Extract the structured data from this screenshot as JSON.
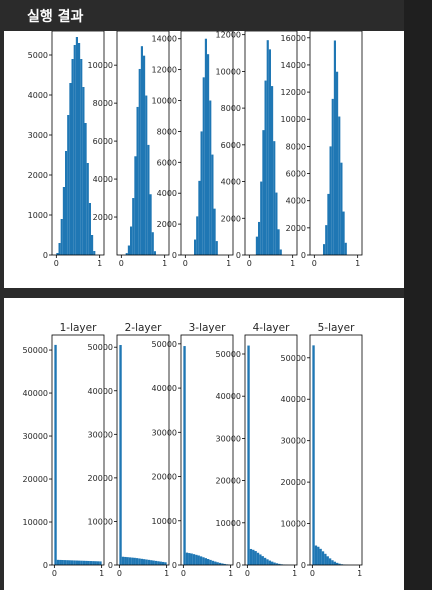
{
  "header": {
    "title": "실행 결과"
  },
  "colors": {
    "bar": "#1f77b4",
    "frame": "#000000",
    "background": "#ffffff"
  },
  "chart_data": [
    {
      "type": "bar",
      "panels": [
        {
          "name": "",
          "x": [
            0,
            0.05,
            0.1,
            0.15,
            0.2,
            0.25,
            0.3,
            0.35,
            0.4,
            0.45,
            0.5,
            0.55,
            0.6,
            0.65,
            0.7,
            0.75,
            0.8,
            0.85
          ],
          "values": [
            50,
            300,
            900,
            1700,
            2600,
            3500,
            4300,
            4900,
            5250,
            5450,
            5300,
            4900,
            4200,
            3300,
            2300,
            1300,
            500,
            100
          ],
          "xticks": [
            "0",
            "1"
          ],
          "yticks": [
            0,
            1000,
            2000,
            3000,
            4000,
            5000
          ],
          "ylim": [
            0,
            5600
          ],
          "xlim": [
            -0.1,
            1.1
          ]
        },
        {
          "name": "",
          "x": [
            0.1,
            0.15,
            0.2,
            0.25,
            0.3,
            0.35,
            0.4,
            0.45,
            0.5,
            0.55,
            0.6,
            0.65,
            0.7,
            0.75
          ],
          "values": [
            100,
            500,
            1500,
            3000,
            5200,
            7800,
            9800,
            11000,
            10500,
            8400,
            5800,
            3200,
            1200,
            200
          ],
          "xticks": [
            "0",
            "1"
          ],
          "yticks": [
            2000,
            4000,
            6000,
            8000,
            10000
          ],
          "ylim": [
            0,
            11800
          ],
          "xlim": [
            -0.1,
            1.1
          ]
        },
        {
          "name": "",
          "x": [
            0.2,
            0.25,
            0.3,
            0.35,
            0.4,
            0.45,
            0.5,
            0.55,
            0.6,
            0.65,
            0.7
          ],
          "values": [
            1000,
            2500,
            4800,
            8000,
            11500,
            14000,
            13000,
            10000,
            6500,
            3000,
            900
          ],
          "xticks": [
            "0",
            "1"
          ],
          "yticks": [
            0,
            2000,
            4000,
            6000,
            8000,
            10000,
            12000,
            14000
          ],
          "ylim": [
            0,
            14500
          ],
          "xlim": [
            -0.1,
            1.1
          ]
        },
        {
          "name": "",
          "x": [
            0.15,
            0.2,
            0.25,
            0.3,
            0.35,
            0.4,
            0.45,
            0.5,
            0.55,
            0.6,
            0.65,
            0.7
          ],
          "values": [
            1000,
            1800,
            4000,
            6800,
            9500,
            11700,
            11200,
            9200,
            6200,
            3400,
            1400,
            300
          ],
          "xticks": [
            "0",
            "1"
          ],
          "yticks": [
            0,
            2000,
            4000,
            6000,
            8000,
            10000,
            12000
          ],
          "ylim": [
            0,
            12200
          ],
          "xlim": [
            -0.1,
            1.1
          ]
        },
        {
          "name": "",
          "x": [
            0.2,
            0.25,
            0.3,
            0.35,
            0.4,
            0.45,
            0.5,
            0.55,
            0.6,
            0.65,
            0.7
          ],
          "values": [
            800,
            2200,
            4500,
            8000,
            11500,
            15800,
            13500,
            10200,
            6800,
            3200,
            900
          ],
          "xticks": [
            "0",
            "1"
          ],
          "yticks": [
            0,
            2000,
            4000,
            6000,
            8000,
            10000,
            12000,
            14000,
            16000
          ],
          "ylim": [
            0,
            16500
          ],
          "xlim": [
            -0.1,
            1.1
          ]
        }
      ]
    },
    {
      "type": "bar",
      "panels": [
        {
          "name": "1-layer",
          "x": [
            0,
            0.05,
            0.1,
            0.15,
            0.2,
            0.25,
            0.3,
            0.35,
            0.4,
            0.45,
            0.5,
            0.55,
            0.6,
            0.65,
            0.7,
            0.75,
            0.8,
            0.85,
            0.9,
            0.95
          ],
          "values": [
            51200,
            1200,
            1180,
            1160,
            1140,
            1120,
            1100,
            1080,
            1060,
            1040,
            1020,
            1000,
            980,
            960,
            940,
            920,
            900,
            880,
            860,
            840
          ],
          "xticks": [
            "0",
            "1"
          ],
          "yticks": [
            0,
            10000,
            20000,
            30000,
            40000,
            50000
          ],
          "ylim": [
            0,
            53500
          ],
          "xlim": [
            -0.05,
            1.05
          ]
        },
        {
          "name": "2-layer",
          "x": [
            0,
            0.05,
            0.1,
            0.15,
            0.2,
            0.25,
            0.3,
            0.35,
            0.4,
            0.45,
            0.5,
            0.55,
            0.6,
            0.65,
            0.7,
            0.75,
            0.8,
            0.85,
            0.9,
            0.95
          ],
          "values": [
            50500,
            1900,
            1850,
            1800,
            1750,
            1700,
            1650,
            1580,
            1500,
            1420,
            1340,
            1260,
            1180,
            1100,
            1020,
            940,
            860,
            780,
            700,
            620
          ],
          "xticks": [
            "0",
            "1"
          ],
          "yticks": [
            0,
            10000,
            20000,
            30000,
            40000,
            50000
          ],
          "ylim": [
            0,
            52800
          ],
          "xlim": [
            -0.05,
            1.05
          ]
        },
        {
          "name": "3-layer",
          "x": [
            0,
            0.05,
            0.1,
            0.15,
            0.2,
            0.25,
            0.3,
            0.35,
            0.4,
            0.45,
            0.5,
            0.55,
            0.6,
            0.65,
            0.7,
            0.75,
            0.8,
            0.85,
            0.9,
            0.95
          ],
          "values": [
            49500,
            2800,
            2700,
            2600,
            2450,
            2300,
            2150,
            1950,
            1750,
            1550,
            1350,
            1150,
            950,
            780,
            620,
            480,
            350,
            240,
            150,
            80
          ],
          "xticks": [
            "0",
            "1"
          ],
          "yticks": [
            0,
            10000,
            20000,
            30000,
            40000,
            50000
          ],
          "ylim": [
            0,
            52000
          ],
          "xlim": [
            -0.05,
            1.05
          ]
        },
        {
          "name": "4-layer",
          "x": [
            0,
            0.05,
            0.1,
            0.15,
            0.2,
            0.25,
            0.3,
            0.35,
            0.4,
            0.45,
            0.5,
            0.55,
            0.6,
            0.65,
            0.7,
            0.75,
            0.8,
            0.85,
            0.9,
            0.95
          ],
          "values": [
            52000,
            3800,
            3600,
            3300,
            2900,
            2500,
            2100,
            1700,
            1350,
            1050,
            800,
            580,
            400,
            270,
            170,
            100,
            60,
            30,
            15,
            5
          ],
          "xticks": [
            "0",
            "1"
          ],
          "yticks": [
            0,
            10000,
            20000,
            30000,
            40000,
            50000
          ],
          "ylim": [
            0,
            54500
          ],
          "xlim": [
            -0.05,
            1.05
          ]
        },
        {
          "name": "5-layer",
          "x": [
            0,
            0.05,
            0.1,
            0.15,
            0.2,
            0.25,
            0.3,
            0.35,
            0.4,
            0.45,
            0.5,
            0.55,
            0.6,
            0.65,
            0.7,
            0.75,
            0.8,
            0.85,
            0.9,
            0.95
          ],
          "values": [
            53000,
            4700,
            4400,
            3900,
            3300,
            2700,
            2100,
            1600,
            1150,
            800,
            520,
            320,
            180,
            100,
            50,
            20,
            10,
            5,
            2,
            1
          ],
          "xticks": [
            "0",
            "1"
          ],
          "yticks": [
            0,
            10000,
            20000,
            30000,
            40000,
            50000
          ],
          "ylim": [
            0,
            55500
          ],
          "xlim": [
            -0.05,
            1.05
          ]
        }
      ]
    }
  ]
}
